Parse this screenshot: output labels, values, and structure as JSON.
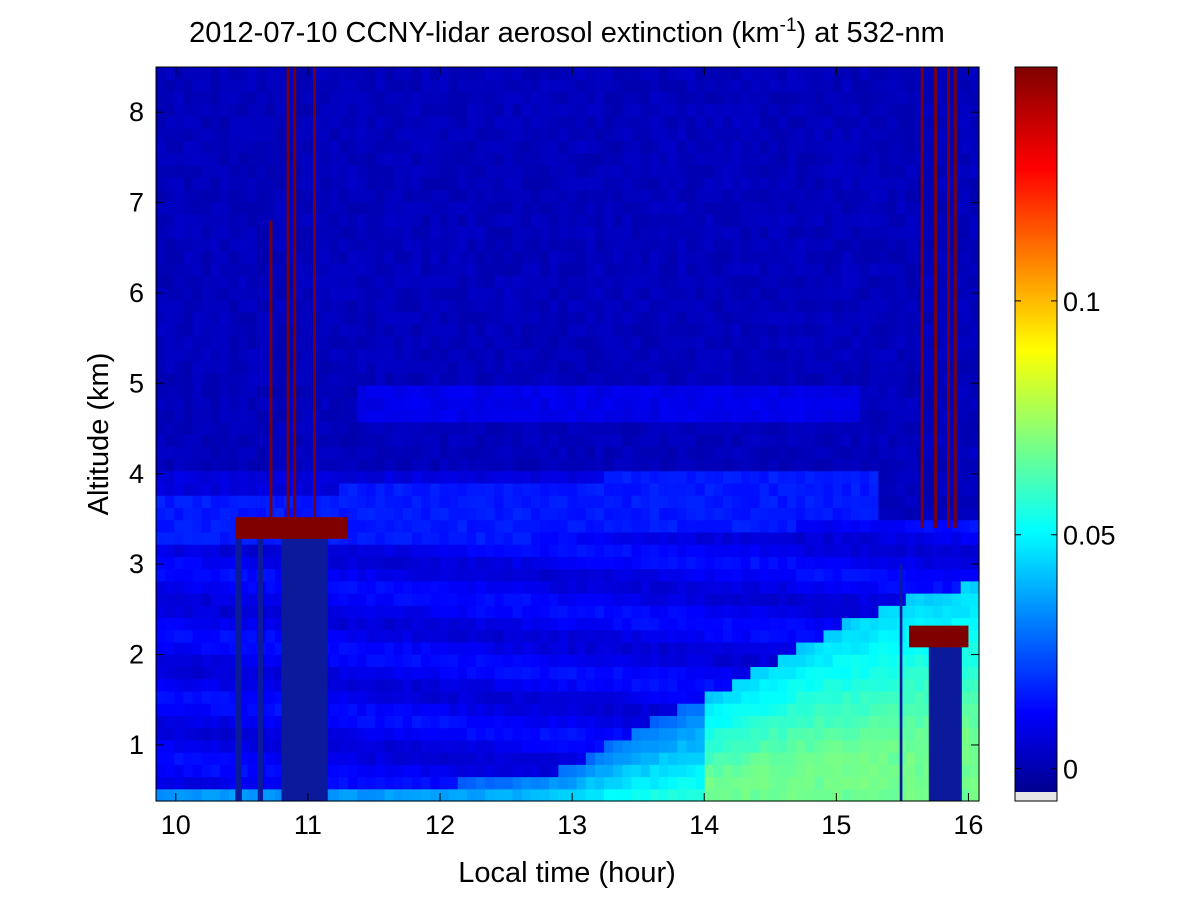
{
  "chart_data": {
    "type": "heatmap",
    "title": {
      "prefix": "2012-07-10 CCNY-lidar aerosol extinction (km",
      "superscript": "-1",
      "suffix": ") at 532-nm"
    },
    "xlabel": "Local time (hour)",
    "ylabel": "Altitude (km)",
    "xlim": [
      9.85,
      16.08
    ],
    "ylim": [
      0.38,
      8.5
    ],
    "xticks": [
      10,
      11,
      12,
      13,
      14,
      15,
      16
    ],
    "yticks": [
      1,
      2,
      3,
      4,
      5,
      6,
      7,
      8
    ],
    "colorbar": {
      "colormap": "jet",
      "range": [
        -0.005,
        0.15
      ],
      "ticks": [
        0,
        0.05,
        0.1
      ],
      "tick_labels": [
        "0",
        "0.05",
        "0.1"
      ],
      "placement": "right",
      "colors": [
        "#00008f",
        "#0000ff",
        "#00ffff",
        "#ffff00",
        "#ff0000",
        "#800000"
      ]
    },
    "features": {
      "background_extinction": 0.004,
      "boundary_layer_top_km": [
        [
          9.85,
          0.55
        ],
        [
          10.5,
          0.55
        ],
        [
          11.5,
          0.55
        ],
        [
          12.5,
          0.6
        ],
        [
          13.0,
          0.75
        ],
        [
          13.5,
          1.2
        ],
        [
          14.0,
          1.5
        ],
        [
          14.5,
          1.9
        ],
        [
          14.6,
          2.0
        ],
        [
          15.0,
          2.3
        ],
        [
          15.5,
          2.6
        ],
        [
          16.08,
          2.8
        ]
      ],
      "elevated_layer_km": {
        "bottom": [
          [
            9.85,
            3.2
          ],
          [
            11.4,
            3.25
          ],
          [
            13.0,
            3.3
          ],
          [
            14.5,
            3.4
          ],
          [
            15.2,
            3.5
          ]
        ],
        "top": [
          [
            9.85,
            3.3
          ],
          [
            11.4,
            3.45
          ],
          [
            13.0,
            3.55
          ],
          [
            14.5,
            3.65
          ],
          [
            15.2,
            3.7
          ]
        ]
      },
      "cloud_layers": [
        {
          "t_start": 10.45,
          "t_end": 11.3,
          "alt_km": 3.4,
          "extinction": 0.15
        },
        {
          "t_start": 15.55,
          "t_end": 16.0,
          "alt_km": 2.2,
          "extinction": 0.15
        }
      ],
      "cloud_streaks": [
        {
          "t": 10.72,
          "alt_top_km": 6.8
        },
        {
          "t": 10.85,
          "alt_top_km": 8.5
        },
        {
          "t": 10.9,
          "alt_top_km": 8.5
        },
        {
          "t": 11.05,
          "alt_top_km": 8.5
        },
        {
          "t": 15.65,
          "alt_top_km": 8.5
        },
        {
          "t": 15.75,
          "alt_top_km": 8.5
        },
        {
          "t": 15.85,
          "alt_top_km": 8.5
        },
        {
          "t": 15.9,
          "alt_top_km": 8.5
        }
      ],
      "attenuated_columns": [
        {
          "t_start": 10.45,
          "t_end": 10.5
        },
        {
          "t_start": 10.62,
          "t_end": 10.66
        },
        {
          "t_start": 10.8,
          "t_end": 11.15
        },
        {
          "t_start": 15.48,
          "t_end": 15.5
        },
        {
          "t_start": 15.7,
          "t_end": 15.95
        }
      ]
    }
  }
}
